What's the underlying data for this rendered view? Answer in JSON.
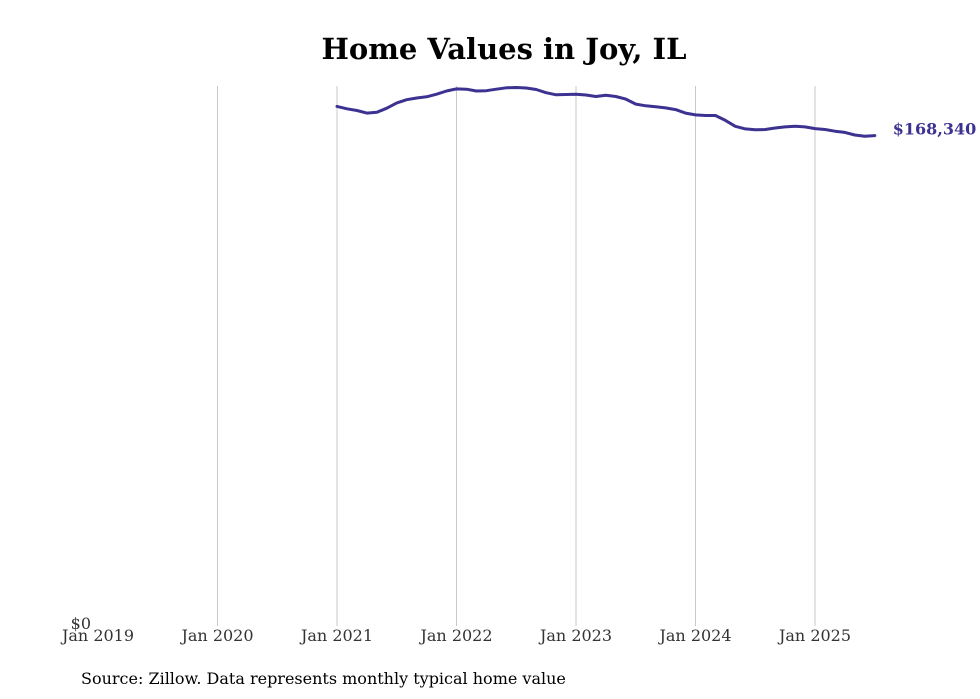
{
  "chart_data": {
    "type": "line",
    "title": "Home Values in Joy, IL",
    "xlabel": "",
    "ylabel": "",
    "x_ticks": [
      "Jan 2019",
      "Jan 2020",
      "Jan 2021",
      "Jan 2022",
      "Jan 2023",
      "Jan 2024",
      "Jan 2025"
    ],
    "y_ticks": [
      {
        "value": 0,
        "label": "$0"
      }
    ],
    "ylim": [
      0,
      185000
    ],
    "xlim": [
      "2019-01",
      "2025-12"
    ],
    "grid": "vertical",
    "series": [
      {
        "color": "#3c3291",
        "end_label": "$168,340",
        "points": [
          [
            "2021-01",
            178000
          ],
          [
            "2021-02",
            177200
          ],
          [
            "2021-03",
            176600
          ],
          [
            "2021-04",
            175700
          ],
          [
            "2021-05",
            176000
          ],
          [
            "2021-06",
            177400
          ],
          [
            "2021-07",
            179200
          ],
          [
            "2021-08",
            180300
          ],
          [
            "2021-09",
            180900
          ],
          [
            "2021-10",
            181300
          ],
          [
            "2021-11",
            182200
          ],
          [
            "2021-12",
            183300
          ],
          [
            "2022-01",
            184000
          ],
          [
            "2022-02",
            183900
          ],
          [
            "2022-03",
            183300
          ],
          [
            "2022-04",
            183400
          ],
          [
            "2022-05",
            183900
          ],
          [
            "2022-06",
            184400
          ],
          [
            "2022-07",
            184500
          ],
          [
            "2022-08",
            184300
          ],
          [
            "2022-09",
            183800
          ],
          [
            "2022-10",
            182700
          ],
          [
            "2022-11",
            182000
          ],
          [
            "2022-12",
            182100
          ],
          [
            "2023-01",
            182200
          ],
          [
            "2023-02",
            181900
          ],
          [
            "2023-03",
            181400
          ],
          [
            "2023-04",
            181800
          ],
          [
            "2023-05",
            181400
          ],
          [
            "2023-06",
            180500
          ],
          [
            "2023-07",
            178800
          ],
          [
            "2023-08",
            178200
          ],
          [
            "2023-09",
            177900
          ],
          [
            "2023-10",
            177500
          ],
          [
            "2023-11",
            176900
          ],
          [
            "2023-12",
            175700
          ],
          [
            "2024-01",
            175100
          ],
          [
            "2024-02",
            174900
          ],
          [
            "2024-03",
            174900
          ],
          [
            "2024-04",
            173200
          ],
          [
            "2024-05",
            171200
          ],
          [
            "2024-06",
            170300
          ],
          [
            "2024-07",
            170000
          ],
          [
            "2024-08",
            170100
          ],
          [
            "2024-09",
            170600
          ],
          [
            "2024-10",
            171000
          ],
          [
            "2024-11",
            171200
          ],
          [
            "2024-12",
            171000
          ],
          [
            "2025-01",
            170400
          ],
          [
            "2025-02",
            170100
          ],
          [
            "2025-03",
            169500
          ],
          [
            "2025-04",
            169100
          ],
          [
            "2025-05",
            168200
          ],
          [
            "2025-06",
            167800
          ],
          [
            "2025-07",
            168000
          ]
        ]
      }
    ]
  },
  "source_note": "Source: Zillow. Data represents monthly typical home value"
}
